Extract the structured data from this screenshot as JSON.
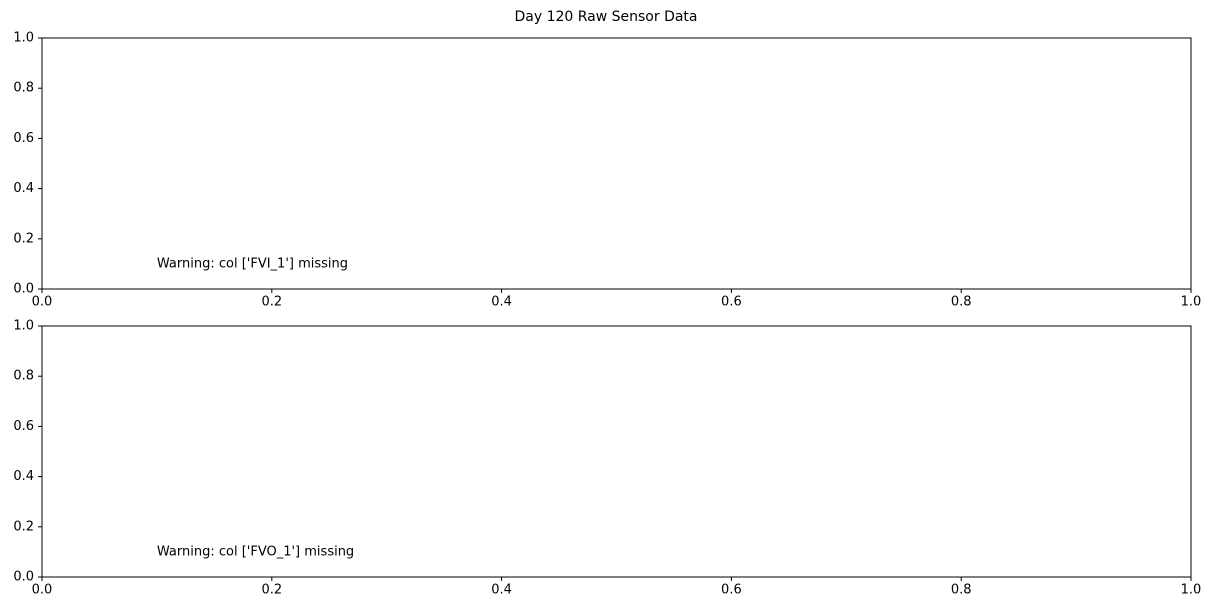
{
  "title": "Day 120 Raw Sensor Data",
  "chart_data": [
    {
      "type": "line",
      "annotation": "Warning: col ['FVI_1'] missing",
      "xlim": [
        0,
        1
      ],
      "ylim": [
        0,
        1
      ],
      "xticks": [
        {
          "value": 0,
          "label": "0.0"
        },
        0.2,
        0.4,
        0.6,
        0.8,
        {
          "value": 1,
          "label": "1.0"
        }
      ],
      "yticks": [
        {
          "value": 0,
          "label": "0.0"
        },
        0.2,
        0.4,
        0.6,
        0.8,
        {
          "value": 1,
          "label": "1.0"
        }
      ]
    },
    {
      "type": "line",
      "annotation": "Warning: col ['FVO_1'] missing",
      "xlim": [
        0,
        1
      ],
      "ylim": [
        0,
        1
      ],
      "xticks": [
        {
          "value": 0,
          "label": "0.0"
        },
        0.2,
        0.4,
        0.6,
        0.8,
        {
          "value": 1,
          "label": "1.0"
        }
      ],
      "yticks": [
        {
          "value": 0,
          "label": "0.0"
        },
        0.2,
        0.4,
        0.6,
        0.8,
        {
          "value": 1,
          "label": "1.0"
        }
      ]
    }
  ]
}
